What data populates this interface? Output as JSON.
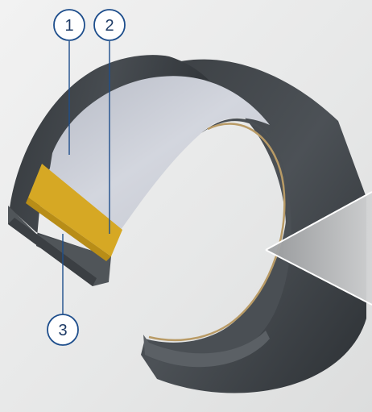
{
  "callouts": [
    {
      "id": "1",
      "label": "1"
    },
    {
      "id": "2",
      "label": "2"
    },
    {
      "id": "3",
      "label": "3"
    }
  ],
  "colors": {
    "background": "#e9eaea",
    "shell": "#3f4448",
    "shell_light": "#5d6166",
    "liner": "#c9ccd5",
    "gold_band": "#d6a824",
    "callout_stroke": "#1e4e8c",
    "callout_text": "#1e3b66",
    "callout_fill": "#ffffff"
  }
}
